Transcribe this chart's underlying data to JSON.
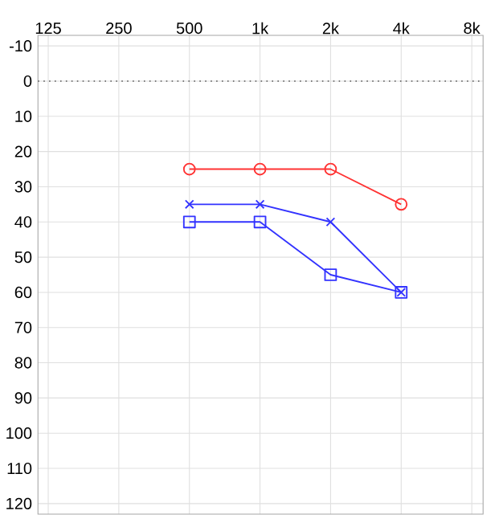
{
  "chart_data": {
    "type": "line",
    "x": [
      500,
      1000,
      2000,
      4000
    ],
    "series": [
      {
        "color": "#ff3333",
        "marker": "circle",
        "values": [
          25,
          25,
          25,
          35
        ]
      },
      {
        "color": "#3333ff",
        "marker": "cross",
        "values": [
          35,
          35,
          40,
          60
        ]
      },
      {
        "color": "#3333ff",
        "marker": "square",
        "values": [
          40,
          40,
          55,
          60
        ]
      }
    ],
    "log": "x",
    "xlim": [
      113,
      8940
    ],
    "xticks": [
      125,
      250,
      500,
      {
        "value": 1000,
        "label": "1k"
      },
      {
        "value": 2000,
        "label": "2k"
      },
      {
        "value": 4000,
        "label": "4k"
      },
      {
        "value": 8000,
        "label": "8k"
      }
    ],
    "ylim": [
      123,
      -13
    ],
    "yticks": [
      -10,
      0,
      10,
      20,
      30,
      40,
      50,
      60,
      70,
      80,
      90,
      100,
      110,
      120
    ],
    "ref_lines": [
      {
        "axis": "y",
        "value": 0,
        "color": "#555555",
        "line_style": "dotted"
      }
    ],
    "grid": true,
    "line_style": "solid"
  }
}
